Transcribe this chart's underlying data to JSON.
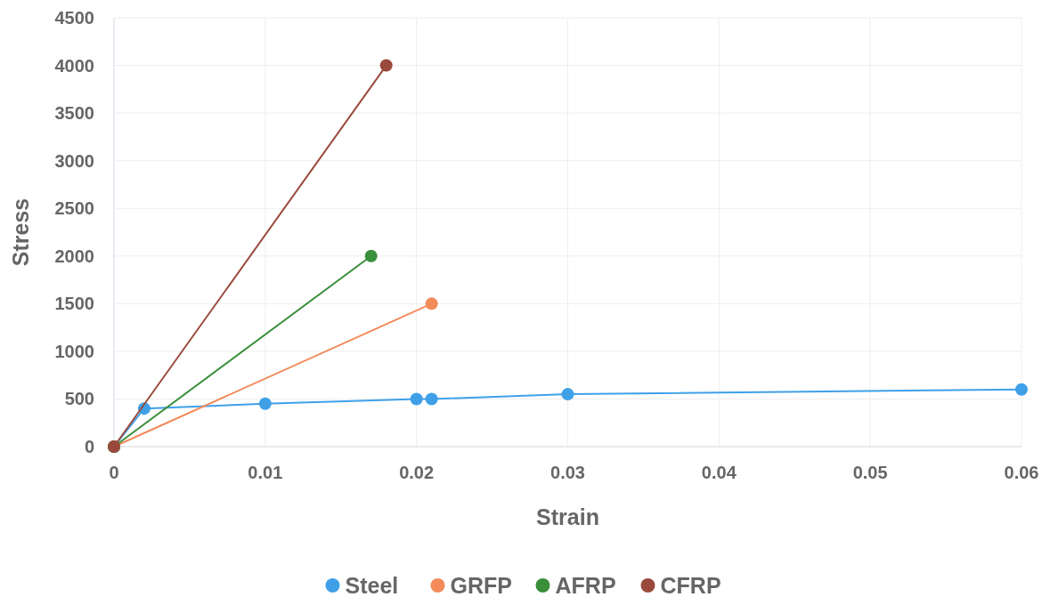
{
  "chart_data": {
    "type": "line",
    "xlabel": "Strain",
    "ylabel": "Stress",
    "xlim": [
      0,
      0.06
    ],
    "ylim": [
      0,
      4500
    ],
    "xticks": [
      0,
      0.01,
      0.02,
      0.03,
      0.04,
      0.05,
      0.06
    ],
    "yticks": [
      0,
      500,
      1000,
      1500,
      2000,
      2500,
      3000,
      3500,
      4000,
      4500
    ],
    "grid": true,
    "legend": "bottom",
    "marker": "circle",
    "series": [
      {
        "name": "Steel",
        "color": "#3fa0e8",
        "x": [
          0,
          0.002,
          0.01,
          0.02,
          0.021,
          0.03,
          0.06
        ],
        "values": [
          0,
          400,
          450,
          500,
          500,
          550,
          600
        ]
      },
      {
        "name": "GRFP",
        "color": "#f28a5a",
        "x": [
          0,
          0.021
        ],
        "values": [
          0,
          1500
        ]
      },
      {
        "name": "AFRP",
        "color": "#3a8f3a",
        "x": [
          0,
          0.017
        ],
        "values": [
          0,
          2000
        ]
      },
      {
        "name": "CFRP",
        "color": "#9a4a3c",
        "x": [
          0,
          0.018
        ],
        "values": [
          0,
          4000
        ]
      }
    ]
  }
}
